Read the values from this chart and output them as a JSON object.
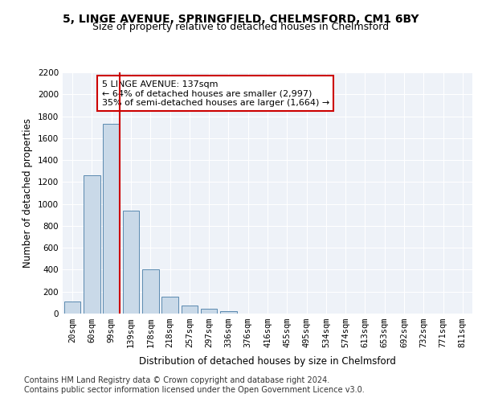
{
  "title": "5, LINGE AVENUE, SPRINGFIELD, CHELMSFORD, CM1 6BY",
  "subtitle": "Size of property relative to detached houses in Chelmsford",
  "xlabel": "Distribution of detached houses by size in Chelmsford",
  "ylabel": "Number of detached properties",
  "categories": [
    "20sqm",
    "60sqm",
    "99sqm",
    "139sqm",
    "178sqm",
    "218sqm",
    "257sqm",
    "297sqm",
    "336sqm",
    "376sqm",
    "416sqm",
    "455sqm",
    "495sqm",
    "534sqm",
    "574sqm",
    "613sqm",
    "653sqm",
    "692sqm",
    "732sqm",
    "771sqm",
    "811sqm"
  ],
  "values": [
    107,
    1265,
    1730,
    940,
    405,
    152,
    73,
    42,
    25,
    0,
    0,
    0,
    0,
    0,
    0,
    0,
    0,
    0,
    0,
    0,
    0
  ],
  "bar_color": "#c9d9e8",
  "bar_edge_color": "#5a8ab0",
  "vline_color": "#cc0000",
  "annotation_text": "5 LINGE AVENUE: 137sqm\n← 64% of detached houses are smaller (2,997)\n35% of semi-detached houses are larger (1,664) →",
  "annotation_box_color": "#ffffff",
  "annotation_box_edge_color": "#cc0000",
  "ylim": [
    0,
    2200
  ],
  "yticks": [
    0,
    200,
    400,
    600,
    800,
    1000,
    1200,
    1400,
    1600,
    1800,
    2000,
    2200
  ],
  "footer_line1": "Contains HM Land Registry data © Crown copyright and database right 2024.",
  "footer_line2": "Contains public sector information licensed under the Open Government Licence v3.0.",
  "plot_bg_color": "#eef2f8",
  "title_fontsize": 10,
  "subtitle_fontsize": 9,
  "axis_label_fontsize": 8.5,
  "tick_fontsize": 7.5,
  "footer_fontsize": 7,
  "annot_fontsize": 8
}
